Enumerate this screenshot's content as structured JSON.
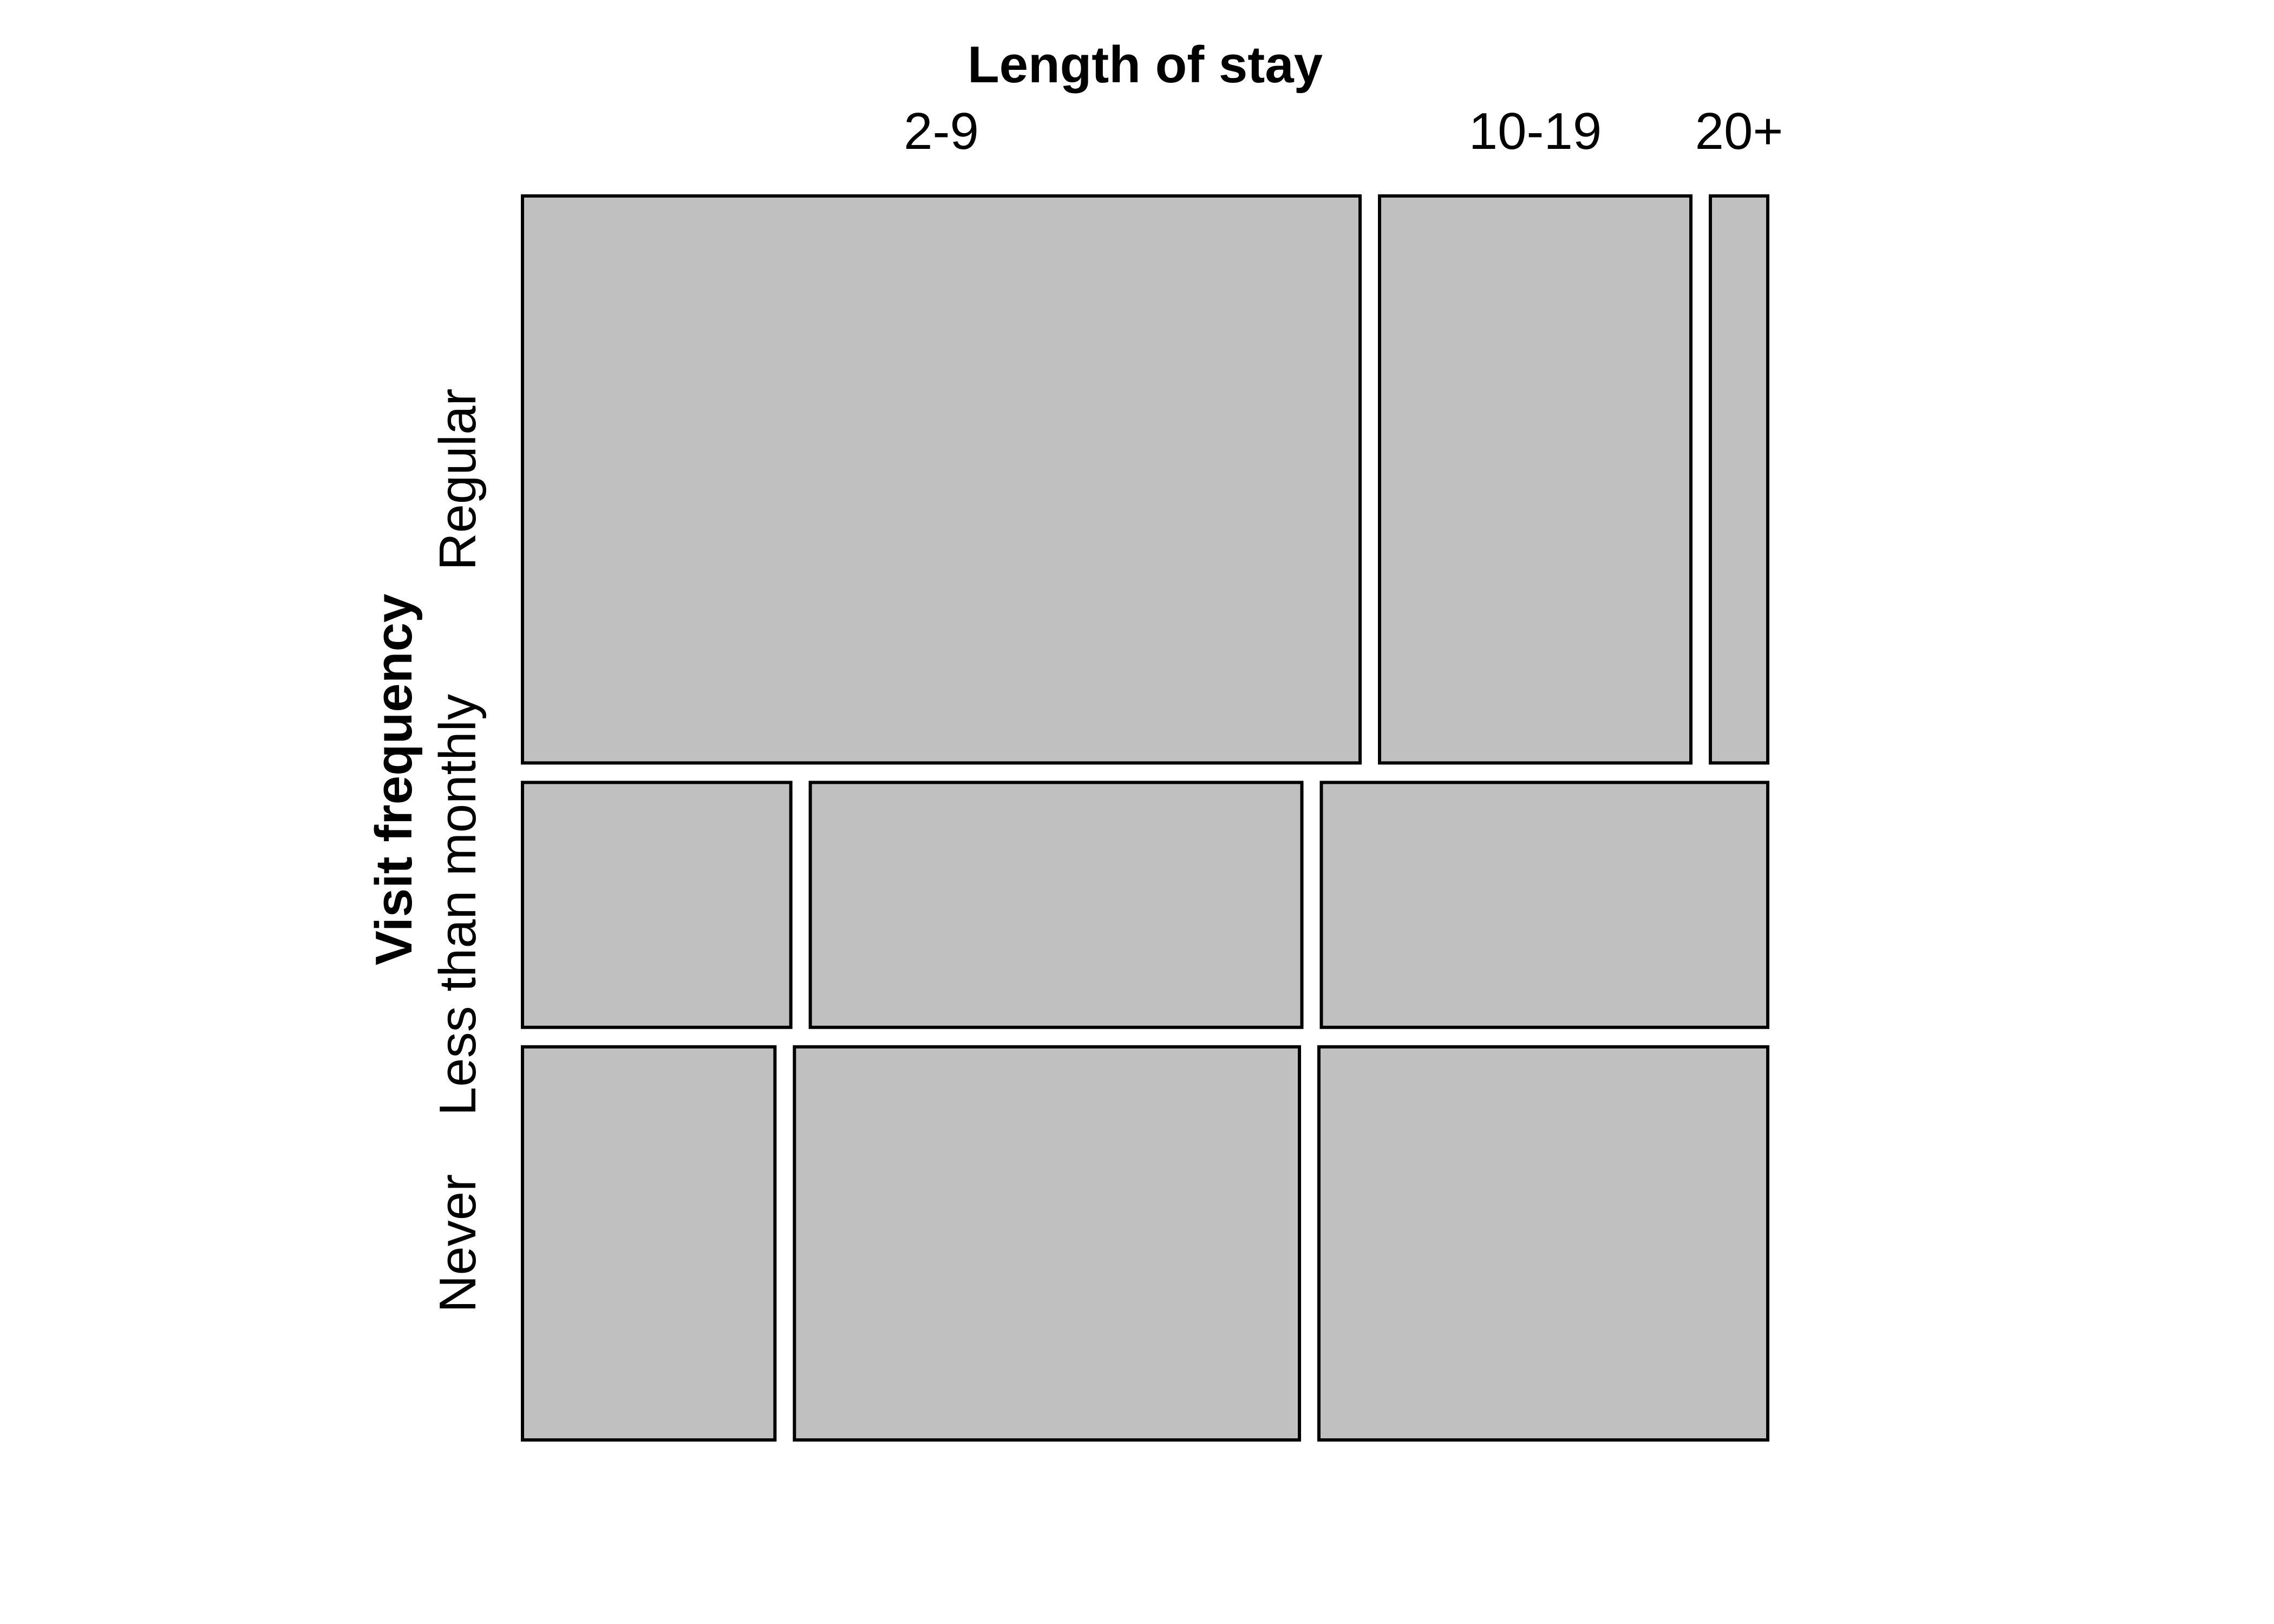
{
  "chart_data": {
    "type": "mosaic",
    "x_variable": "Length of stay",
    "y_variable": "Visit frequency",
    "rows": [
      {
        "label": "Regular",
        "share": 0.463
      },
      {
        "label": "Less than monthly",
        "share": 0.2
      },
      {
        "label": "Never",
        "share": 0.321
      }
    ],
    "column_labels": [
      "2-9",
      "10-19",
      "20+"
    ],
    "cells": [
      {
        "row": "Regular",
        "widths": [
          0.686,
          0.255,
          0.047
        ]
      },
      {
        "row": "Less than monthly",
        "widths": [
          0.22,
          0.403,
          0.366
        ]
      },
      {
        "row": "Never",
        "widths": [
          0.207,
          0.414,
          0.368
        ]
      }
    ],
    "fill_color": "#c0c0c0",
    "stroke_color": "#000000"
  }
}
